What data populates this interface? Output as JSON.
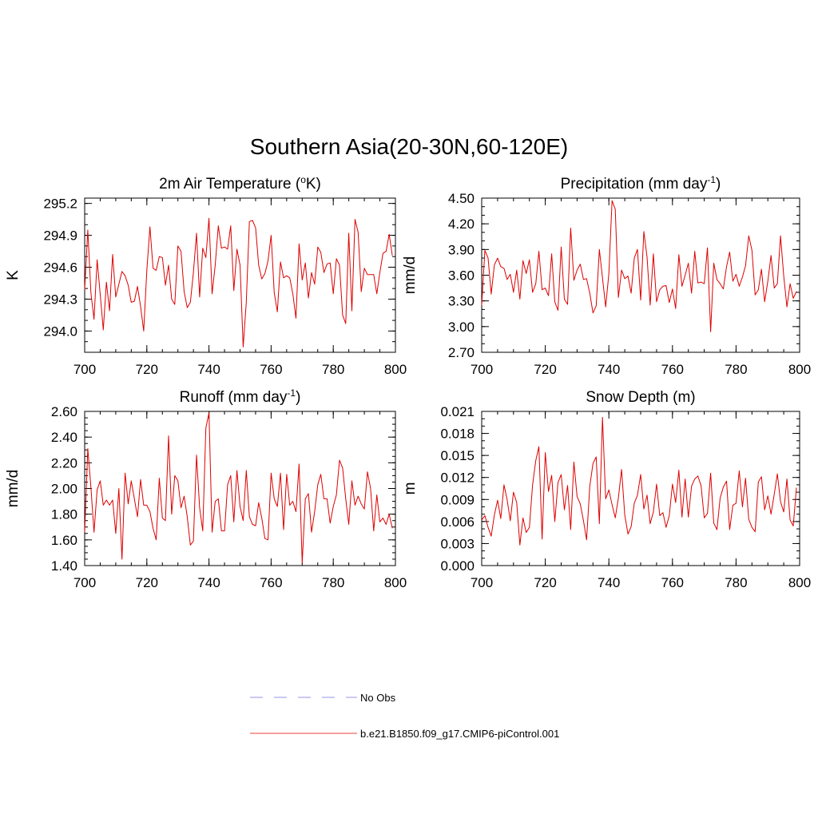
{
  "figure": {
    "title": "Southern Asia(20-30N,60-120E)"
  },
  "legend": {
    "entries": [
      {
        "label": "No Obs",
        "color": "#aaaaee",
        "style": "dashed"
      },
      {
        "label": "b.e21.B1850.f09_g17.CMIP6-piControl.001",
        "color": "#ee6666",
        "style": "solid"
      }
    ]
  },
  "chart_data": [
    {
      "type": "line",
      "title": "2m Air Temperature (",
      "title_sup": "o",
      "title_after": "K)",
      "ylabel": "K",
      "xlim": [
        700,
        800
      ],
      "ylim": [
        293.8,
        295.25
      ],
      "xticks": [
        700,
        720,
        740,
        760,
        780,
        800
      ],
      "yticks": [
        294.0,
        294.3,
        294.6,
        294.9,
        295.2
      ],
      "ytick_labels": [
        "294.0",
        "294.3",
        "294.6",
        "294.9",
        "295.2"
      ],
      "yminor_step": 0.1,
      "color": "#dd0000",
      "series": [
        {
          "x_start": 700,
          "x_step": 1,
          "values": [
            294.39,
            294.95,
            294.36,
            294.11,
            294.67,
            294.34,
            294.01,
            294.46,
            294.19,
            294.72,
            294.32,
            294.44,
            294.56,
            294.52,
            294.43,
            294.27,
            294.28,
            294.42,
            294.23,
            294.0,
            294.57,
            294.98,
            294.59,
            294.57,
            294.7,
            294.69,
            294.43,
            294.62,
            294.3,
            294.25,
            294.8,
            294.75,
            294.37,
            294.22,
            294.27,
            294.55,
            294.92,
            294.32,
            294.78,
            294.69,
            295.06,
            294.35,
            294.62,
            294.99,
            294.78,
            294.79,
            294.77,
            294.99,
            294.38,
            294.77,
            294.62,
            293.85,
            294.27,
            295.03,
            295.04,
            294.97,
            294.62,
            294.49,
            294.54,
            294.66,
            294.9,
            294.36,
            294.18,
            294.65,
            294.5,
            294.52,
            294.5,
            294.35,
            294.12,
            294.82,
            294.48,
            294.64,
            294.31,
            294.55,
            294.44,
            294.79,
            294.74,
            294.55,
            294.63,
            294.64,
            294.35,
            294.68,
            294.62,
            294.15,
            294.07,
            294.92,
            294.19,
            295.05,
            294.93,
            294.37,
            294.59,
            294.53,
            294.53,
            294.53,
            294.35,
            294.55,
            294.73,
            294.75,
            294.91,
            294.71
          ]
        }
      ]
    },
    {
      "type": "line",
      "title": "Precipitation (mm day",
      "title_sup": "-1",
      "title_after": ")",
      "ylabel": "mm/d",
      "xlim": [
        700,
        800
      ],
      "ylim": [
        2.7,
        4.5
      ],
      "xticks": [
        700,
        720,
        740,
        760,
        780,
        800
      ],
      "yticks": [
        2.7,
        3.0,
        3.3,
        3.6,
        3.9,
        4.2,
        4.5
      ],
      "ytick_labels": [
        "2.70",
        "3.00",
        "3.30",
        "3.60",
        "3.90",
        "4.20",
        "4.50"
      ],
      "yminor_step": 0.1,
      "color": "#dd0000",
      "series": [
        {
          "x_start": 700,
          "x_step": 1,
          "values": [
            3.25,
            3.89,
            3.8,
            3.38,
            3.72,
            3.8,
            3.7,
            3.68,
            3.55,
            3.61,
            3.4,
            3.66,
            3.32,
            3.77,
            3.62,
            3.78,
            3.4,
            3.5,
            3.88,
            3.43,
            3.45,
            3.36,
            3.85,
            3.29,
            3.19,
            3.93,
            3.32,
            3.26,
            4.15,
            3.54,
            3.66,
            3.73,
            3.55,
            3.56,
            3.39,
            3.16,
            3.24,
            3.9,
            3.57,
            3.23,
            3.62,
            4.47,
            4.37,
            3.34,
            3.66,
            3.56,
            3.59,
            3.39,
            3.8,
            3.9,
            3.31,
            4.11,
            3.81,
            3.25,
            3.85,
            3.29,
            3.43,
            3.47,
            3.48,
            3.28,
            3.44,
            3.21,
            3.84,
            3.47,
            3.6,
            3.74,
            3.39,
            3.88,
            3.51,
            3.52,
            3.5,
            3.92,
            2.94,
            3.74,
            3.55,
            3.5,
            3.44,
            3.7,
            3.87,
            3.53,
            3.61,
            3.47,
            3.58,
            3.71,
            4.06,
            3.89,
            3.37,
            3.43,
            3.67,
            3.29,
            3.53,
            3.83,
            3.45,
            3.5,
            4.06,
            3.59,
            3.23,
            3.5,
            3.33,
            3.41
          ]
        }
      ]
    },
    {
      "type": "line",
      "title": "Runoff (mm day",
      "title_sup": "-1",
      "title_after": ")",
      "ylabel": "mm/d",
      "xlim": [
        700,
        800
      ],
      "ylim": [
        1.4,
        2.6
      ],
      "xticks": [
        700,
        720,
        740,
        760,
        780,
        800
      ],
      "yticks": [
        1.4,
        1.6,
        1.8,
        2.0,
        2.2,
        2.4,
        2.6
      ],
      "ytick_labels": [
        "1.40",
        "1.60",
        "1.80",
        "2.00",
        "2.20",
        "2.40",
        "2.60"
      ],
      "yminor_step": 0.05,
      "color": "#dd0000",
      "series": [
        {
          "x_start": 700,
          "x_step": 1,
          "values": [
            1.66,
            2.31,
            2.01,
            1.66,
            1.99,
            2.06,
            1.87,
            1.91,
            1.87,
            1.91,
            1.65,
            2.0,
            1.45,
            2.12,
            1.88,
            2.06,
            1.92,
            1.78,
            2.07,
            1.87,
            1.87,
            1.82,
            1.69,
            1.6,
            2.08,
            1.77,
            1.75,
            2.41,
            1.8,
            2.1,
            2.06,
            1.85,
            1.94,
            1.78,
            1.56,
            1.59,
            2.26,
            1.85,
            1.67,
            2.47,
            2.59,
            1.66,
            1.9,
            1.92,
            1.67,
            1.67,
            2.03,
            2.1,
            1.74,
            2.14,
            1.86,
            1.75,
            2.14,
            1.78,
            1.72,
            1.71,
            1.89,
            1.77,
            1.61,
            1.6,
            2.12,
            1.92,
            1.86,
            2.12,
            1.68,
            2.11,
            1.87,
            1.9,
            1.82,
            2.19,
            1.42,
            1.92,
            1.96,
            1.66,
            1.82,
            2.03,
            2.11,
            1.92,
            1.92,
            1.73,
            1.86,
            1.95,
            2.22,
            2.16,
            1.92,
            1.72,
            2.06,
            1.87,
            1.94,
            1.88,
            1.84,
            2.13,
            2.0,
            1.67,
            1.95,
            1.74,
            1.77,
            1.72,
            1.8,
            1.69
          ]
        }
      ]
    },
    {
      "type": "line",
      "title": "Snow Depth (m)",
      "title_sup": "",
      "title_after": "",
      "ylabel": "m",
      "xlim": [
        700,
        800
      ],
      "ylim": [
        0.0,
        0.021
      ],
      "xticks": [
        700,
        720,
        740,
        760,
        780,
        800
      ],
      "yticks": [
        0.0,
        0.003,
        0.006,
        0.009,
        0.012,
        0.015,
        0.018,
        0.021
      ],
      "ytick_labels": [
        "0.000",
        "0.003",
        "0.006",
        "0.009",
        "0.012",
        "0.015",
        "0.018",
        "0.021"
      ],
      "yminor_step": 0.001,
      "color": "#dd0000",
      "series": [
        {
          "x_start": 700,
          "x_step": 1,
          "values": [
            0.0062,
            0.0068,
            0.0052,
            0.004,
            0.0069,
            0.0089,
            0.0064,
            0.011,
            0.009,
            0.0061,
            0.01,
            0.0086,
            0.0028,
            0.0065,
            0.0045,
            0.0052,
            0.011,
            0.0143,
            0.0162,
            0.0036,
            0.0154,
            0.0101,
            0.0123,
            0.006,
            0.0113,
            0.0124,
            0.0076,
            0.0109,
            0.0049,
            0.0141,
            0.0094,
            0.0084,
            0.0061,
            0.0035,
            0.0108,
            0.0139,
            0.0148,
            0.0057,
            0.0202,
            0.0091,
            0.0103,
            0.0083,
            0.0065,
            0.0092,
            0.0131,
            0.0069,
            0.0043,
            0.0053,
            0.0085,
            0.0096,
            0.0124,
            0.0077,
            0.0096,
            0.0057,
            0.0073,
            0.0111,
            0.0068,
            0.0072,
            0.0052,
            0.0068,
            0.0111,
            0.0086,
            0.013,
            0.0066,
            0.0118,
            0.0066,
            0.0108,
            0.0118,
            0.0122,
            0.0109,
            0.0065,
            0.0071,
            0.0126,
            0.0058,
            0.0049,
            0.0092,
            0.0107,
            0.0115,
            0.0049,
            0.0082,
            0.0085,
            0.0129,
            0.008,
            0.0119,
            0.0063,
            0.0052,
            0.0046,
            0.0114,
            0.0121,
            0.0076,
            0.0095,
            0.007,
            0.0097,
            0.0125,
            0.0087,
            0.0073,
            0.0118,
            0.0062,
            0.0054,
            0.0106
          ]
        }
      ]
    }
  ]
}
